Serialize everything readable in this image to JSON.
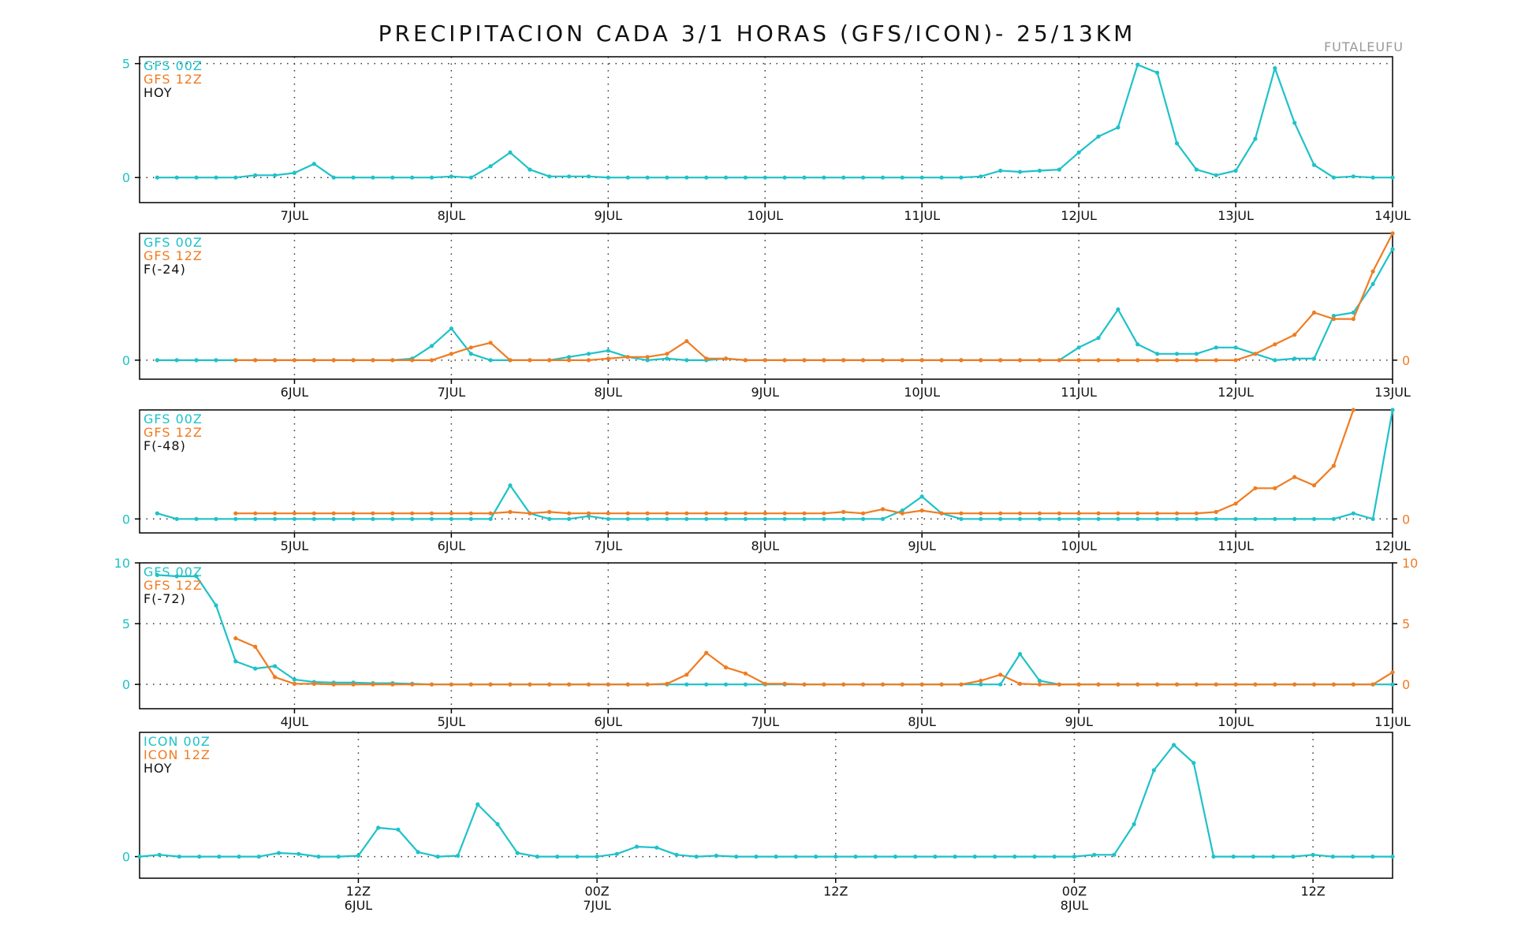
{
  "title": "PRECIPITACION CADA 3/1 HORAS (GFS/ICON)- 25/13KM",
  "station": "FUTALEUFU",
  "colors": {
    "cyan": "#1ec2c8",
    "orange": "#f07c22",
    "label": "#111111",
    "frame": "#000000",
    "grid": "#333333"
  },
  "chart_data": [
    {
      "type": "line",
      "legend": [
        "GFS 00Z",
        "GFS 12Z",
        "HOY"
      ],
      "x_ticks": [
        {
          "label": "7JUL",
          "at": 7
        },
        {
          "label": "8JUL",
          "at": 15
        },
        {
          "label": "9JUL",
          "at": 23
        },
        {
          "label": "10JUL",
          "at": 31
        },
        {
          "label": "11JUL",
          "at": 39
        },
        {
          "label": "12JUL",
          "at": 47
        },
        {
          "label": "13JUL",
          "at": 55
        },
        {
          "label": "14JUL",
          "at": 63
        }
      ],
      "x_range": [
        -0.9,
        63
      ],
      "ylim": [
        -1.1,
        5.3
      ],
      "y_ticks_left": [
        {
          "label": "0",
          "v": 0
        },
        {
          "label": "5",
          "v": 5
        }
      ],
      "y_ticks_right": [],
      "grid_y": [
        0,
        5
      ],
      "series": [
        {
          "name": "GFS 00Z",
          "color_key": "cyan",
          "start": 0,
          "values": [
            0,
            0,
            0,
            0,
            0,
            0.1,
            0.1,
            0.2,
            0.6,
            0,
            0,
            0,
            0,
            0,
            0,
            0.05,
            0,
            0.5,
            1.1,
            0.35,
            0.05,
            0.05,
            0.05,
            0,
            0,
            0,
            0,
            0,
            0,
            0,
            0,
            0,
            0,
            0,
            0,
            0,
            0,
            0,
            0,
            0,
            0,
            0,
            0.05,
            0.3,
            0.25,
            0.3,
            0.35,
            1.1,
            1.8,
            2.2,
            4.95,
            4.6,
            1.5,
            0.35,
            0.1,
            0.3,
            1.7,
            4.8,
            2.4,
            0.55,
            0,
            0.05,
            0,
            0
          ]
        }
      ]
    },
    {
      "type": "line",
      "legend": [
        "GFS 00Z",
        "GFS 12Z",
        "F(-24)"
      ],
      "x_ticks": [
        {
          "label": "6JUL",
          "at": 7
        },
        {
          "label": "7JUL",
          "at": 15
        },
        {
          "label": "8JUL",
          "at": 23
        },
        {
          "label": "9JUL",
          "at": 31
        },
        {
          "label": "10JUL",
          "at": 39
        },
        {
          "label": "11JUL",
          "at": 47
        },
        {
          "label": "12JUL",
          "at": 55
        },
        {
          "label": "13JUL",
          "at": 63
        }
      ],
      "x_range": [
        -0.9,
        63
      ],
      "ylim": [
        -0.6,
        4.0
      ],
      "y_ticks_left": [
        {
          "label": "0",
          "v": 0
        }
      ],
      "y_ticks_right": [
        {
          "label": "0",
          "v": 0
        }
      ],
      "grid_y": [
        0
      ],
      "series": [
        {
          "name": "GFS 00Z",
          "color_key": "cyan",
          "start": 0,
          "values": [
            0,
            0,
            0,
            0,
            0,
            0,
            0,
            0,
            0,
            0,
            0,
            0,
            0,
            0.05,
            0.45,
            1.0,
            0.2,
            0,
            0,
            0,
            0,
            0.1,
            0.2,
            0.3,
            0.1,
            0,
            0.05,
            0,
            0,
            0.05,
            0,
            0,
            0,
            0,
            0,
            0,
            0,
            0,
            0,
            0,
            0,
            0,
            0,
            0,
            0,
            0,
            0,
            0.4,
            0.7,
            1.6,
            0.5,
            0.2,
            0.2,
            0.2,
            0.4,
            0.4,
            0.2,
            0,
            0.05,
            0.05,
            1.4,
            1.5,
            2.4,
            3.5
          ]
        },
        {
          "name": "GFS 12Z",
          "color_key": "orange",
          "start": 4,
          "values": [
            0,
            0,
            0,
            0,
            0,
            0,
            0,
            0,
            0,
            0,
            0,
            0.2,
            0.4,
            0.55,
            0,
            0,
            0,
            0,
            0,
            0.05,
            0.1,
            0.1,
            0.2,
            0.6,
            0.05,
            0.05,
            0,
            0,
            0,
            0,
            0,
            0,
            0,
            0,
            0,
            0,
            0,
            0,
            0,
            0,
            0,
            0,
            0,
            0,
            0,
            0,
            0,
            0,
            0,
            0,
            0,
            0,
            0.2,
            0.5,
            0.8,
            1.5,
            1.3,
            1.3,
            2.8,
            4.0
          ]
        }
      ]
    },
    {
      "type": "line",
      "legend": [
        "GFS 00Z",
        "GFS 12Z",
        "F(-48)"
      ],
      "x_ticks": [
        {
          "label": "5JUL",
          "at": 7
        },
        {
          "label": "6JUL",
          "at": 15
        },
        {
          "label": "7JUL",
          "at": 23
        },
        {
          "label": "8JUL",
          "at": 31
        },
        {
          "label": "9JUL",
          "at": 39
        },
        {
          "label": "10JUL",
          "at": 47
        },
        {
          "label": "11JUL",
          "at": 55
        },
        {
          "label": "12JUL",
          "at": 63
        }
      ],
      "x_range": [
        -0.9,
        63
      ],
      "ylim": [
        -0.5,
        3.9
      ],
      "y_ticks_left": [
        {
          "label": "0",
          "v": 0
        }
      ],
      "y_ticks_right": [
        {
          "label": "0",
          "v": 0
        }
      ],
      "grid_y": [
        0
      ],
      "series": [
        {
          "name": "GFS 00Z",
          "color_key": "cyan",
          "start": 0,
          "values": [
            0.2,
            0,
            0,
            0,
            0,
            0,
            0,
            0,
            0,
            0,
            0,
            0,
            0,
            0,
            0,
            0,
            0,
            0,
            1.2,
            0.2,
            0,
            0,
            0.1,
            0,
            0,
            0,
            0,
            0,
            0,
            0,
            0,
            0,
            0,
            0,
            0,
            0,
            0,
            0,
            0.3,
            0.8,
            0.2,
            0,
            0,
            0,
            0,
            0,
            0,
            0,
            0,
            0,
            0,
            0,
            0,
            0,
            0,
            0,
            0,
            0,
            0,
            0,
            0,
            0.2,
            0,
            3.9
          ]
        },
        {
          "name": "GFS 12Z",
          "color_key": "orange",
          "start": 4,
          "values": [
            0.2,
            0.2,
            0.2,
            0.2,
            0.2,
            0.2,
            0.2,
            0.2,
            0.2,
            0.2,
            0.2,
            0.2,
            0.2,
            0.2,
            0.25,
            0.2,
            0.25,
            0.2,
            0.2,
            0.2,
            0.2,
            0.2,
            0.2,
            0.2,
            0.2,
            0.2,
            0.2,
            0.2,
            0.2,
            0.2,
            0.2,
            0.25,
            0.2,
            0.35,
            0.2,
            0.3,
            0.2,
            0.2,
            0.2,
            0.2,
            0.2,
            0.2,
            0.2,
            0.2,
            0.2,
            0.2,
            0.2,
            0.2,
            0.2,
            0.2,
            0.25,
            0.55,
            1.1,
            1.1,
            1.5,
            1.2,
            1.9,
            3.9
          ]
        }
      ]
    },
    {
      "type": "line",
      "legend": [
        "GFS 00Z",
        "GFS 12Z",
        "F(-72)"
      ],
      "x_ticks": [
        {
          "label": "4JUL",
          "at": 7
        },
        {
          "label": "5JUL",
          "at": 15
        },
        {
          "label": "6JUL",
          "at": 23
        },
        {
          "label": "7JUL",
          "at": 31
        },
        {
          "label": "8JUL",
          "at": 39
        },
        {
          "label": "9JUL",
          "at": 47
        },
        {
          "label": "10JUL",
          "at": 55
        },
        {
          "label": "11JUL",
          "at": 63
        }
      ],
      "x_range": [
        -0.9,
        63
      ],
      "ylim": [
        -2,
        10
      ],
      "y_ticks_left": [
        {
          "label": "0",
          "v": 0
        },
        {
          "label": "5",
          "v": 5
        },
        {
          "label": "10",
          "v": 10
        }
      ],
      "y_ticks_right": [
        {
          "label": "0",
          "v": 0
        },
        {
          "label": "5",
          "v": 5
        },
        {
          "label": "10",
          "v": 10
        }
      ],
      "grid_y": [
        0,
        5
      ],
      "series": [
        {
          "name": "GFS 00Z",
          "color_key": "cyan",
          "start": 0,
          "values": [
            9,
            8.9,
            8.9,
            6.5,
            1.9,
            1.3,
            1.5,
            0.4,
            0.2,
            0.15,
            0.15,
            0.1,
            0.1,
            0.05,
            0,
            0,
            0,
            0,
            0,
            0,
            0,
            0,
            0,
            0,
            0,
            0,
            0,
            0,
            0,
            0,
            0,
            0,
            0,
            0,
            0,
            0,
            0,
            0,
            0,
            0,
            0,
            0,
            0,
            0,
            2.5,
            0.3,
            0,
            0,
            0,
            0,
            0,
            0,
            0,
            0,
            0,
            0,
            0,
            0,
            0,
            0,
            0,
            0,
            0,
            0
          ]
        },
        {
          "name": "GFS 12Z",
          "color_key": "orange",
          "start": 4,
          "values": [
            3.8,
            3.1,
            0.6,
            0.05,
            0.05,
            0,
            0,
            0,
            0,
            0,
            0,
            0,
            0,
            0,
            0,
            0,
            0,
            0,
            0,
            0,
            0,
            0,
            0.05,
            0.8,
            2.6,
            1.4,
            0.9,
            0.05,
            0.05,
            0,
            0,
            0,
            0,
            0,
            0,
            0,
            0,
            0,
            0.3,
            0.8,
            0.05,
            0,
            0,
            0,
            0,
            0,
            0,
            0,
            0,
            0,
            0,
            0,
            0,
            0,
            0,
            0,
            0,
            0,
            0,
            1.0
          ]
        }
      ]
    },
    {
      "type": "line",
      "legend": [
        "ICON 00Z",
        "ICON 12Z",
        "HOY"
      ],
      "x_ticks": [
        {
          "label": "12Z",
          "sub": "6JUL",
          "at": 11
        },
        {
          "label": "00Z",
          "sub": "7JUL",
          "at": 23
        },
        {
          "label": "12Z",
          "sub": "",
          "at": 35
        },
        {
          "label": "00Z",
          "sub": "8JUL",
          "at": 47
        },
        {
          "label": "12Z",
          "sub": "",
          "at": 59
        }
      ],
      "x_range": [
        0,
        63
      ],
      "ylim": [
        -1.2,
        6.9
      ],
      "y_ticks_left": [
        {
          "label": "0",
          "v": 0
        }
      ],
      "y_ticks_right": [],
      "grid_y": [
        0
      ],
      "series": [
        {
          "name": "ICON 00Z",
          "color_key": "cyan",
          "start": 0,
          "values": [
            0,
            0.1,
            0,
            0,
            0,
            0,
            0,
            0.2,
            0.15,
            0,
            0,
            0.05,
            1.6,
            1.5,
            0.25,
            0,
            0.05,
            2.9,
            1.8,
            0.2,
            0,
            0,
            0,
            0,
            0.15,
            0.55,
            0.5,
            0.1,
            0,
            0.05,
            0,
            0,
            0,
            0,
            0,
            0,
            0,
            0,
            0,
            0,
            0,
            0,
            0,
            0,
            0,
            0,
            0,
            0,
            0.1,
            0.1,
            1.8,
            4.8,
            6.2,
            5.2,
            0,
            0,
            0,
            0,
            0,
            0.1,
            0,
            0,
            0,
            0
          ]
        }
      ]
    }
  ]
}
